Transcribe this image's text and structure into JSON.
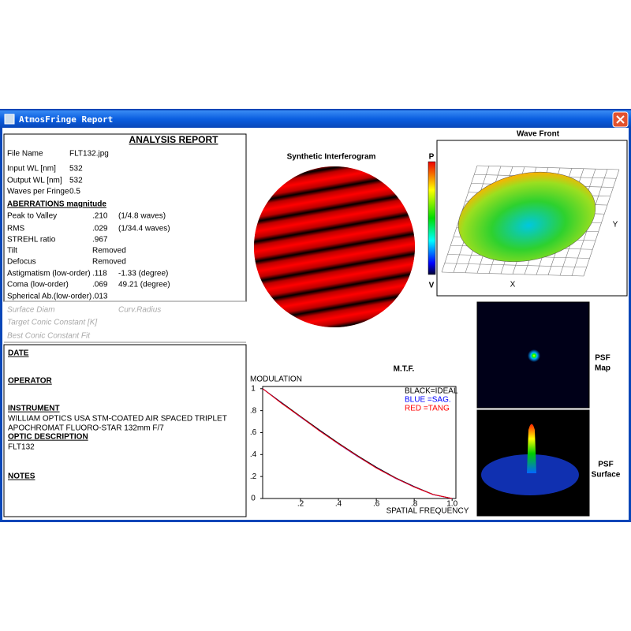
{
  "window": {
    "title": "AtmosFringe  Report"
  },
  "report": {
    "title": "ANALYSIS  REPORT",
    "info": [
      [
        "File Name",
        "FLT132.jpg"
      ],
      [
        "Input WL [nm]",
        "532"
      ],
      [
        "Output WL [nm]",
        "532"
      ],
      [
        "Waves per Fringe",
        "0.5"
      ]
    ],
    "aberrations_title": "ABERRATIONS magnitude",
    "aberrations": [
      [
        "Peak to Valley",
        ".210",
        "(1/4.8 waves)"
      ],
      [
        "RMS",
        ".029",
        "(1/34.4 waves)"
      ],
      [
        "STREHL ratio",
        ".967"
      ],
      [
        "Tilt",
        "Removed"
      ],
      [
        "Defocus",
        "Removed"
      ],
      [
        "Astigmatism  (low-order)",
        ".118",
        "-1.33  (degree)"
      ],
      [
        "Coma       (low-order)",
        ".069",
        "49.21  (degree)"
      ],
      [
        "Spherical Ab.(low-order)",
        ".013"
      ]
    ],
    "surface": [
      "Surface Diam",
      "Curv.Radius",
      "Target Conic Constant [K]",
      "Best Conic Constant Fit"
    ]
  },
  "notes": {
    "date": "DATE",
    "operator": "OPERATOR",
    "instrument": "INSTRUMENT",
    "instrument_text": [
      "WILLIAM OPTICS USA STM-COATED AIR SPACED TRIPLET",
      "APOCHROMAT FLUORO-STAR 132mm F/7"
    ],
    "optic_description": "OPTIC DESCRIPTION",
    "optic_text": "FLT132",
    "notes": "NOTES"
  },
  "interferogram": {
    "title": "Synthetic Interferogram",
    "top": "P",
    "bottom": "V"
  },
  "wavefront": {
    "title": "Wave Front",
    "x_label": "X",
    "y_label": "Y"
  },
  "psf": {
    "map_label": [
      "PSF",
      "Map"
    ],
    "surface_label": [
      "PSF",
      "Surface"
    ]
  },
  "chart_data": {
    "type": "line",
    "title": "M.T.F.",
    "y_label": "MODULATION",
    "x_label": "SPATIAL FREQUENCY",
    "x": [
      0,
      0.1,
      0.2,
      0.3,
      0.4,
      0.5,
      0.6,
      0.7,
      0.8,
      0.9,
      1.0
    ],
    "series": [
      {
        "name": "BLACK=IDEAL",
        "color": "#000000",
        "values": [
          1,
          0.873,
          0.748,
          0.624,
          0.504,
          0.391,
          0.285,
          0.19,
          0.109,
          0.037,
          0
        ]
      },
      {
        "name": "BLUE  =SAG.",
        "color": "#0000ff",
        "values": [
          1,
          0.868,
          0.741,
          0.617,
          0.497,
          0.384,
          0.279,
          0.185,
          0.105,
          0.035,
          0
        ]
      },
      {
        "name": "RED   =TANG",
        "color": "#ff0000",
        "values": [
          1,
          0.866,
          0.744,
          0.615,
          0.499,
          0.386,
          0.277,
          0.186,
          0.104,
          0.036,
          0
        ]
      }
    ],
    "xlim": [
      0,
      1.02
    ],
    "ylim": [
      0,
      1.02
    ],
    "xticks": [
      {
        "value": 0.2,
        "label": ".2"
      },
      {
        "value": 0.4,
        "label": ".4"
      },
      {
        "value": 0.6,
        "label": ".6"
      },
      {
        "value": 0.8,
        "label": ".8"
      },
      {
        "value": 1,
        "label": "1.0"
      }
    ],
    "yticks": [
      0,
      {
        "value": 0.2,
        "label": ".2"
      },
      {
        "value": 0.4,
        "label": ".4"
      },
      {
        "value": 0.6,
        "label": ".6"
      },
      {
        "value": 0.8,
        "label": ".8"
      },
      1
    ]
  }
}
